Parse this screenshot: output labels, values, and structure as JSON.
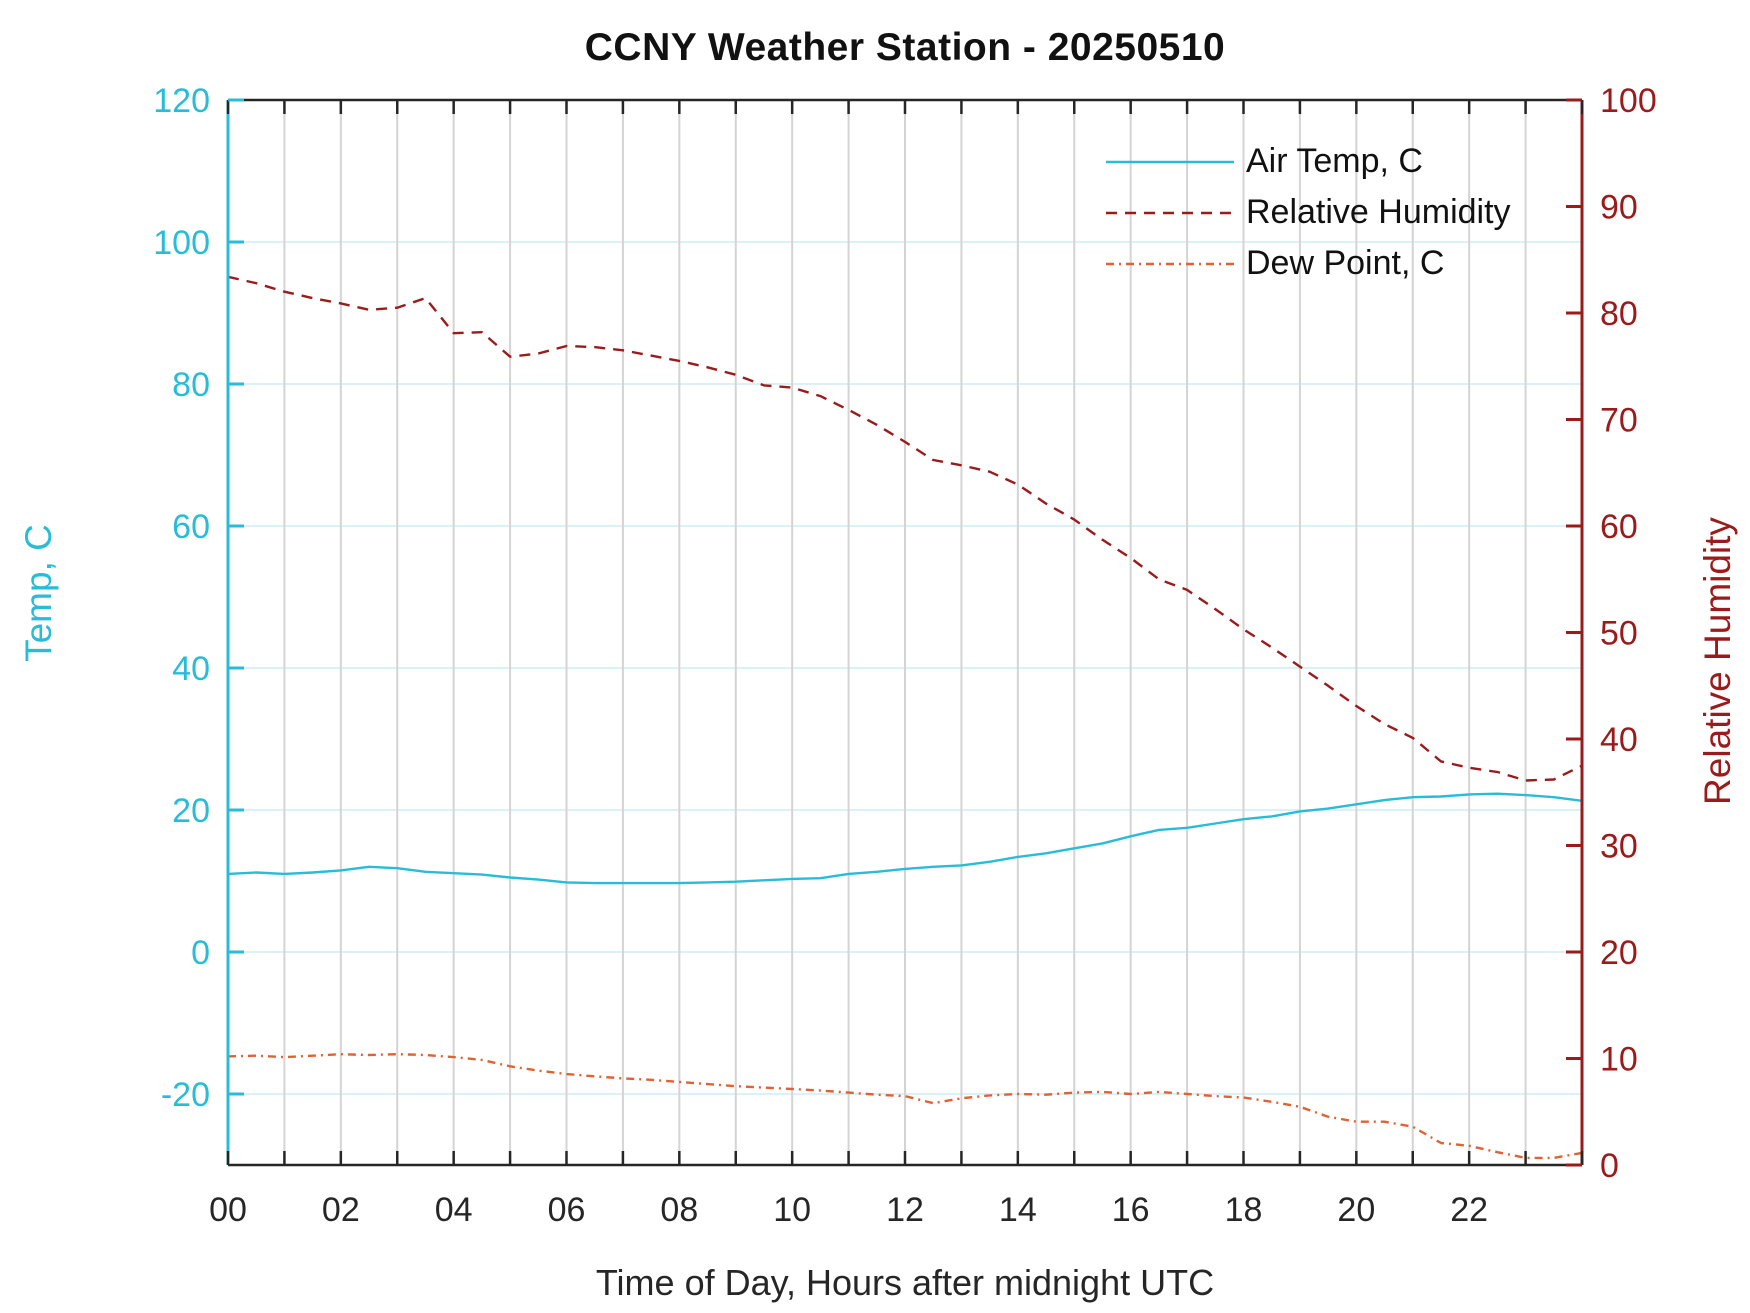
{
  "title": "CCNY Weather Station - 20250510",
  "axes": {
    "x": {
      "label": "Time of Day, Hours after midnight UTC",
      "tick_labels": [
        "00",
        "02",
        "04",
        "06",
        "08",
        "10",
        "12",
        "14",
        "16",
        "18",
        "20",
        "22"
      ],
      "tick_hours": [
        0,
        2,
        4,
        6,
        8,
        10,
        12,
        14,
        16,
        18,
        20,
        22
      ],
      "minor_tick_every_hours": 1,
      "range": [
        0,
        24
      ]
    },
    "y_left": {
      "label": "Temp, C",
      "tick_values": [
        -20,
        0,
        20,
        40,
        60,
        80,
        100,
        120
      ],
      "range": [
        -30,
        120
      ],
      "color": "#29bcd8"
    },
    "y_right": {
      "label": "Relative Humidity",
      "tick_values": [
        0,
        10,
        20,
        30,
        40,
        50,
        60,
        70,
        80,
        90,
        100
      ],
      "range": [
        0,
        100
      ],
      "color": "#9a1b1b"
    }
  },
  "colors": {
    "air_temp": "#29bcd8",
    "relative_humidity": "#9a1b1b",
    "dew_point": "#de6233",
    "grid_vertical": "#d4d4d4",
    "grid_horizontal": "#daf1f7",
    "frame": "#262626",
    "text": "#111111"
  },
  "chart_data": {
    "type": "line",
    "title": "CCNY Weather Station - 20250510",
    "xlabel": "Time of Day, Hours after midnight UTC",
    "ylabel_left": "Temp, C",
    "ylabel_right": "Relative Humidity",
    "x_range_hours": [
      0,
      24
    ],
    "y_left_range": [
      -30,
      120
    ],
    "y_right_range": [
      0,
      100
    ],
    "grid": "on",
    "legend_position": "upper right, no box",
    "x": [
      0,
      0.5,
      1,
      1.5,
      2,
      2.5,
      3,
      3.5,
      4,
      4.5,
      5,
      5.5,
      6,
      6.5,
      7,
      7.5,
      8,
      8.5,
      9,
      9.5,
      10,
      10.5,
      11,
      11.5,
      12,
      12.5,
      13,
      13.5,
      14,
      14.5,
      15,
      15.5,
      16,
      16.5,
      17,
      17.5,
      18,
      18.5,
      19,
      19.5,
      20,
      20.5,
      21,
      21.5,
      22,
      22.5,
      23,
      23.5,
      24
    ],
    "series": [
      {
        "name": "Air Temp, C",
        "axis": "left",
        "style": "solid",
        "color": "#29bcd8",
        "values": [
          11.0,
          11.2,
          11.0,
          11.2,
          11.5,
          12.0,
          11.8,
          11.3,
          11.1,
          10.9,
          10.5,
          10.2,
          9.8,
          9.7,
          9.7,
          9.7,
          9.7,
          9.8,
          9.9,
          10.1,
          10.3,
          10.4,
          11.0,
          11.3,
          11.7,
          12.0,
          12.2,
          12.7,
          13.4,
          13.9,
          14.6,
          15.3,
          16.3,
          17.2,
          17.5,
          18.1,
          18.7,
          19.1,
          19.8,
          20.2,
          20.8,
          21.4,
          21.8,
          21.9,
          22.2,
          22.3,
          22.1,
          21.8,
          21.3
        ]
      },
      {
        "name": "Relative Humidity",
        "axis": "right",
        "style": "dashed",
        "color": "#9a1b1b",
        "values": [
          83.4,
          82.8,
          82.0,
          81.4,
          80.9,
          80.3,
          80.5,
          81.4,
          78.1,
          78.2,
          75.9,
          76.2,
          76.9,
          76.8,
          76.5,
          76.0,
          75.5,
          74.9,
          74.2,
          73.2,
          73.0,
          72.2,
          70.9,
          69.5,
          67.9,
          66.2,
          65.7,
          65.1,
          63.9,
          62.1,
          60.6,
          58.7,
          57.0,
          55.0,
          54.0,
          52.2,
          50.3,
          48.6,
          46.8,
          45.0,
          43.1,
          41.4,
          40.1,
          37.9,
          37.3,
          36.9,
          36.1,
          36.2,
          37.5
        ]
      },
      {
        "name": "Dew Point, C",
        "axis": "left",
        "style": "dashdot",
        "color": "#de6233",
        "values": [
          -14.7,
          -14.6,
          -14.8,
          -14.6,
          -14.4,
          -14.5,
          -14.4,
          -14.5,
          -14.8,
          -15.2,
          -16.1,
          -16.7,
          -17.2,
          -17.5,
          -17.8,
          -18.0,
          -18.3,
          -18.6,
          -18.9,
          -19.1,
          -19.3,
          -19.5,
          -19.8,
          -20.1,
          -20.3,
          -21.3,
          -20.6,
          -20.2,
          -20.0,
          -20.1,
          -19.8,
          -19.7,
          -20.0,
          -19.7,
          -20.0,
          -20.3,
          -20.5,
          -21.1,
          -21.8,
          -23.2,
          -23.9,
          -23.9,
          -24.6,
          -26.9,
          -27.3,
          -28.2,
          -29.0,
          -29.0,
          -28.3
        ]
      }
    ]
  }
}
